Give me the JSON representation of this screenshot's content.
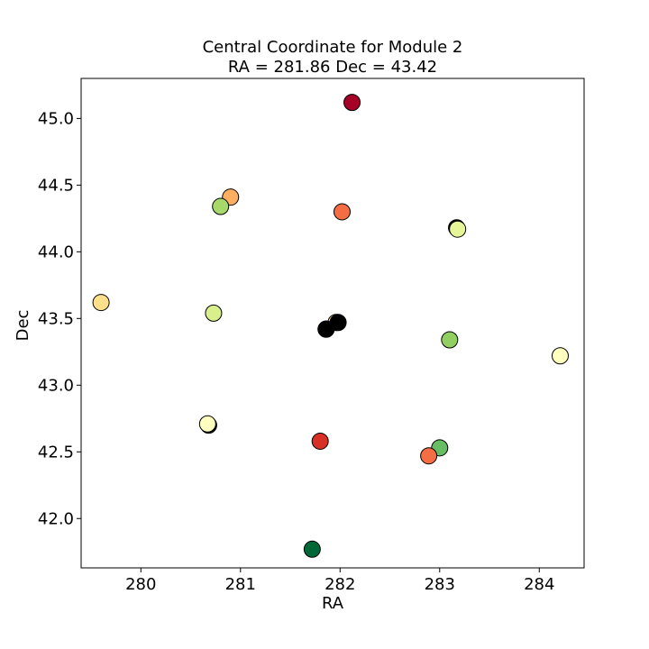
{
  "chart_data": {
    "type": "scatter",
    "title_line1": "Central Coordinate for Module 2",
    "title_line2": "RA = 281.86 Dec = 43.42",
    "xlabel": "RA",
    "ylabel": "Dec",
    "xlim": [
      279.4,
      284.45
    ],
    "ylim": [
      41.63,
      45.3
    ],
    "xticks": [
      280,
      281,
      282,
      283,
      284
    ],
    "xtick_labels": [
      "280",
      "281",
      "282",
      "283",
      "284"
    ],
    "yticks": [
      42.0,
      42.5,
      43.0,
      43.5,
      44.0,
      44.5,
      45.0
    ],
    "ytick_labels": [
      "42.0",
      "42.5",
      "43.0",
      "43.5",
      "44.0",
      "44.5",
      "45.0"
    ],
    "grid": false,
    "points": [
      {
        "x": 282.12,
        "y": 45.12,
        "color": "#a50026"
      },
      {
        "x": 280.9,
        "y": 44.41,
        "color": "#fdae61"
      },
      {
        "x": 280.8,
        "y": 44.34,
        "color": "#a6d96a"
      },
      {
        "x": 282.02,
        "y": 44.3,
        "color": "#f46d43"
      },
      {
        "x": 283.17,
        "y": 44.18,
        "color": "#000000"
      },
      {
        "x": 283.18,
        "y": 44.17,
        "color": "#e6f598"
      },
      {
        "x": 279.6,
        "y": 43.62,
        "color": "#fee08b"
      },
      {
        "x": 280.73,
        "y": 43.54,
        "color": "#d9ef8b"
      },
      {
        "x": 281.96,
        "y": 43.47,
        "color": "#fee08b"
      },
      {
        "x": 281.98,
        "y": 43.47,
        "color": "#000000"
      },
      {
        "x": 281.86,
        "y": 43.42,
        "color": "#fdae61"
      },
      {
        "x": 281.86,
        "y": 43.42,
        "color": "#000000"
      },
      {
        "x": 283.1,
        "y": 43.34,
        "color": "#91cf60"
      },
      {
        "x": 284.21,
        "y": 43.22,
        "color": "#ffffbf"
      },
      {
        "x": 280.68,
        "y": 42.7,
        "color": "#000000"
      },
      {
        "x": 280.67,
        "y": 42.71,
        "color": "#ffffbf"
      },
      {
        "x": 281.8,
        "y": 42.58,
        "color": "#d73027"
      },
      {
        "x": 283.0,
        "y": 42.53,
        "color": "#66bd63"
      },
      {
        "x": 282.89,
        "y": 42.47,
        "color": "#f46d43"
      },
      {
        "x": 281.72,
        "y": 41.77,
        "color": "#006837"
      }
    ]
  }
}
